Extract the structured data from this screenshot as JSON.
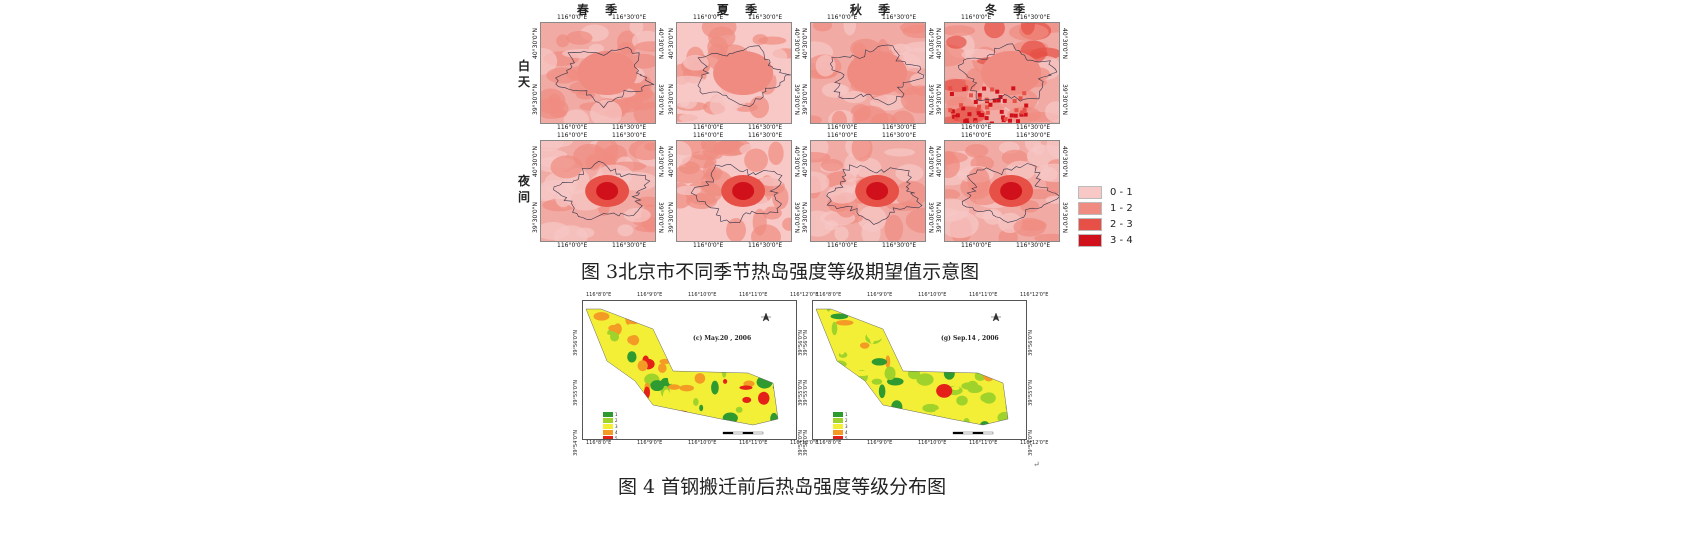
{
  "figure3": {
    "seasons": [
      "春 季",
      "夏 季",
      "秋 季",
      "冬 季"
    ],
    "rows": [
      "白天",
      "夜间"
    ],
    "top_ticks": [
      "116°0'0\"E",
      "116°30'0\"E"
    ],
    "bottom_ticks": [
      "116°0'0\"E",
      "116°30'0\"E"
    ],
    "left_ticks": [
      "40°30'0\"N",
      "39°30'0\"N"
    ],
    "right_ticks": [
      "40°30'0\"N",
      "39°30'0\"N"
    ],
    "legend": [
      {
        "label": "0 - 1",
        "color": "#f7c8c6"
      },
      {
        "label": "1 - 2",
        "color": "#ef8b80"
      },
      {
        "label": "2 - 3",
        "color": "#e65046"
      },
      {
        "label": "3 - 4",
        "color": "#d0101a"
      }
    ],
    "caption": "图 3北京市不同季节热岛强度等级期望值示意图"
  },
  "figure4": {
    "maps": [
      {
        "label": "(c) May.20 , 2006",
        "top_ticks": [
          "116°8'0\"E",
          "116°9'0\"E",
          "116°10'0\"E",
          "116°11'0\"E",
          "116°12'0\"E"
        ],
        "bottom_ticks": [
          "116°8'0\"E",
          "116°9'0\"E",
          "116°10'0\"E",
          "116°11'0\"E",
          "116°12'0\"E"
        ],
        "left_ticks": [
          "39°56'0\"N",
          "39°55'0\"N",
          "39°54'0\"N"
        ],
        "right_ticks": [
          "39°56'0\"N",
          "39°55'0\"N",
          "39°54'0\"N"
        ]
      },
      {
        "label": "(g) Sep.14 , 2006",
        "top_ticks": [
          "116°8'0\"E",
          "116°9'0\"E",
          "116°10'0\"E",
          "116°11'0\"E",
          "116°12'0\"E"
        ],
        "bottom_ticks": [
          "116°8'0\"E",
          "116°9'0\"E",
          "116°10'0\"E",
          "116°11'0\"E",
          "116°12'0\"E"
        ],
        "left_ticks": [
          "39°56'0\"N",
          "39°55'0\"N",
          "39°54'0\"N"
        ],
        "right_ticks": [
          "39°56'0\"N",
          "39°55'0\"N",
          "39°54'0\"N"
        ]
      }
    ],
    "legend_colors": [
      "#2f9a2f",
      "#9fd22a",
      "#f2ef36",
      "#f39b25",
      "#e42018"
    ],
    "legend_labels": [
      "1",
      "2",
      "3",
      "4",
      "5"
    ],
    "caption": "图 4 首钢搬迁前后热岛强度等级分布图"
  },
  "colors": {
    "light_pink": "#f7c8c6",
    "salmon": "#ef8b80",
    "red": "#e65046",
    "dark_red": "#d0101a"
  }
}
